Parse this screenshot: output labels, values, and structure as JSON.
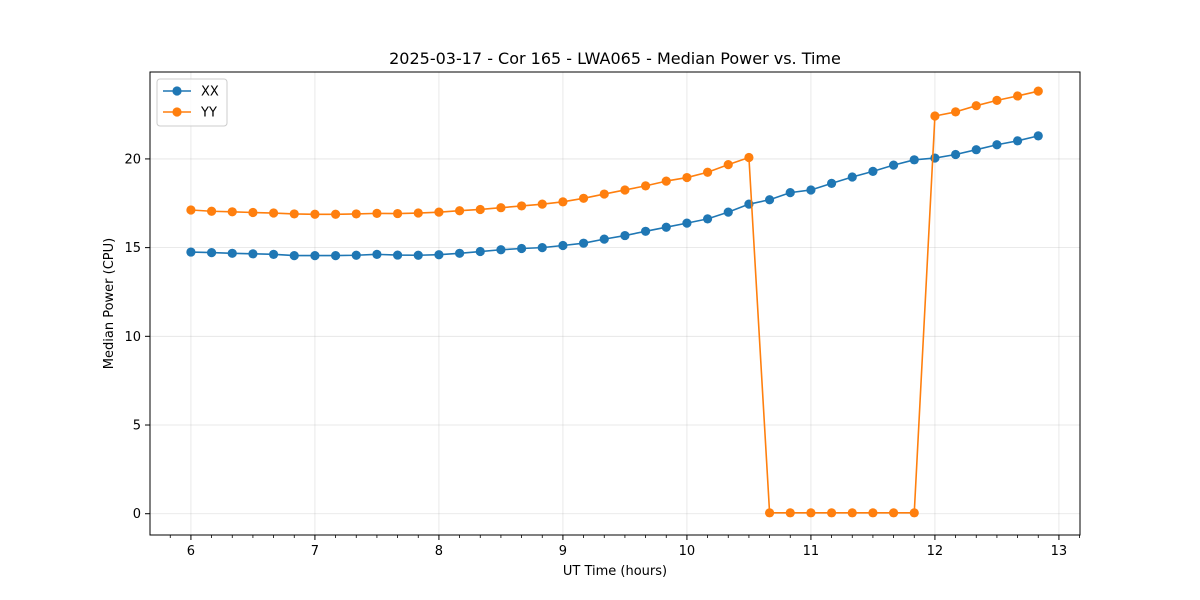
{
  "chart_data": {
    "type": "line",
    "title": "2025-03-17 - Cor 165 - LWA065 - Median Power vs. Time",
    "xlabel": "UT Time (hours)",
    "ylabel": "Median Power (CPU)",
    "xlim": [
      5.67,
      13.17
    ],
    "ylim": [
      -1.2,
      24.9
    ],
    "xticks": [
      6,
      7,
      8,
      9,
      10,
      11,
      12,
      13
    ],
    "yticks": [
      0,
      5,
      10,
      15,
      20
    ],
    "grid": true,
    "legend_position": "top-left",
    "x": [
      6.0,
      6.1667,
      6.3333,
      6.5,
      6.6667,
      6.8333,
      7.0,
      7.1667,
      7.3333,
      7.5,
      7.6667,
      7.8333,
      8.0,
      8.1667,
      8.3333,
      8.5,
      8.6667,
      8.8333,
      9.0,
      9.1667,
      9.3333,
      9.5,
      9.6667,
      9.8333,
      10.0,
      10.1667,
      10.3333,
      10.5,
      10.6667,
      10.8333,
      11.0,
      11.1667,
      11.3333,
      11.5,
      11.6667,
      11.8333,
      12.0,
      12.1667,
      12.3333,
      12.5,
      12.6667,
      12.8333
    ],
    "series": [
      {
        "name": "XX",
        "color": "#1f77b4",
        "values": [
          14.75,
          14.72,
          14.68,
          14.65,
          14.62,
          14.55,
          14.55,
          14.55,
          14.57,
          14.62,
          14.58,
          14.57,
          14.6,
          14.68,
          14.78,
          14.88,
          14.95,
          15.0,
          15.12,
          15.25,
          15.48,
          15.68,
          15.92,
          16.15,
          16.38,
          16.62,
          17.0,
          17.45,
          17.7,
          18.1,
          18.25,
          18.62,
          18.98,
          19.3,
          19.65,
          19.95,
          20.05,
          20.25,
          20.52,
          20.8,
          21.02,
          21.3
        ]
      },
      {
        "name": "YY",
        "color": "#ff7f0e",
        "values": [
          17.12,
          17.05,
          17.02,
          16.98,
          16.95,
          16.9,
          16.88,
          16.88,
          16.9,
          16.93,
          16.92,
          16.95,
          17.0,
          17.08,
          17.15,
          17.25,
          17.35,
          17.45,
          17.58,
          17.78,
          18.02,
          18.25,
          18.48,
          18.75,
          18.95,
          19.25,
          19.68,
          20.08,
          0.05,
          0.05,
          0.05,
          0.05,
          0.05,
          0.05,
          0.05,
          0.05,
          22.42,
          22.65,
          23.0,
          23.3,
          23.55,
          23.82
        ]
      }
    ]
  }
}
